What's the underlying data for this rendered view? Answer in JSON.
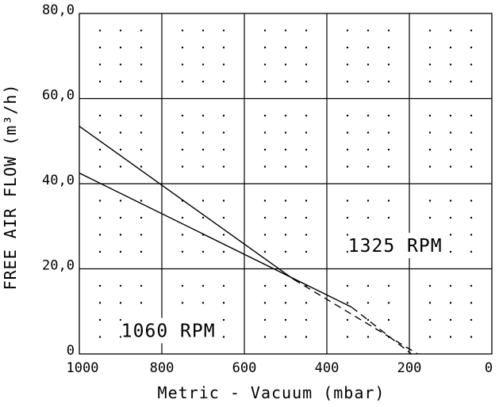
{
  "chart_data": {
    "type": "line",
    "xlabel": "Metric - Vacuum (mbar)",
    "ylabel": "FREE AIR FLOW (m³/h)",
    "xlim": [
      1000,
      0
    ],
    "ylim": [
      0,
      80
    ],
    "x_ticks": [
      "1000",
      "800",
      "600",
      "400",
      "200",
      "0"
    ],
    "y_ticks": [
      "0",
      "20,0",
      "40,0",
      "60,0",
      "80,0"
    ],
    "grid": true,
    "series": [
      {
        "name": "1325 RPM",
        "solid": [
          [
            1000,
            53.5
          ],
          [
            480,
            17.5
          ]
        ],
        "dashed": [
          [
            480,
            17.5
          ],
          [
            180,
            0
          ]
        ]
      },
      {
        "name": "1060 RPM",
        "solid": [
          [
            1000,
            42.5
          ],
          [
            340,
            11
          ]
        ],
        "dashed": [
          [
            340,
            11
          ],
          [
            195,
            0
          ]
        ]
      }
    ],
    "annotations": [
      {
        "text": "1325 RPM",
        "x": 210,
        "y": 24
      },
      {
        "text": "1060 RPM",
        "x": 760,
        "y": 4
      }
    ]
  }
}
